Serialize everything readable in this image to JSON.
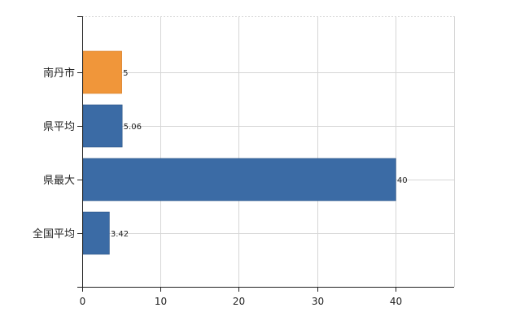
{
  "chart_data": {
    "type": "bar",
    "orientation": "horizontal",
    "categories": [
      "南丹市",
      "県平均",
      "県最大",
      "全国平均"
    ],
    "values": [
      5,
      5.06,
      40,
      3.42
    ],
    "value_labels": [
      "5",
      "5.06",
      "40",
      "3.42"
    ],
    "title": "",
    "xlabel": "",
    "ylabel": "",
    "xlim": [
      0,
      47.5
    ],
    "x_ticks": [
      0,
      10,
      20,
      30,
      40
    ],
    "x_tick_labels": [
      "0",
      "10",
      "20",
      "30",
      "40"
    ],
    "grid": true,
    "highlight_category": "南丹市",
    "colors": {
      "highlight": "#f0963a",
      "default": "#3b6ba5",
      "bar_stroke": "#2c5486",
      "highlight_stroke": "#d27a22",
      "grid": "#d6d6d6",
      "axis": "#222222"
    }
  }
}
